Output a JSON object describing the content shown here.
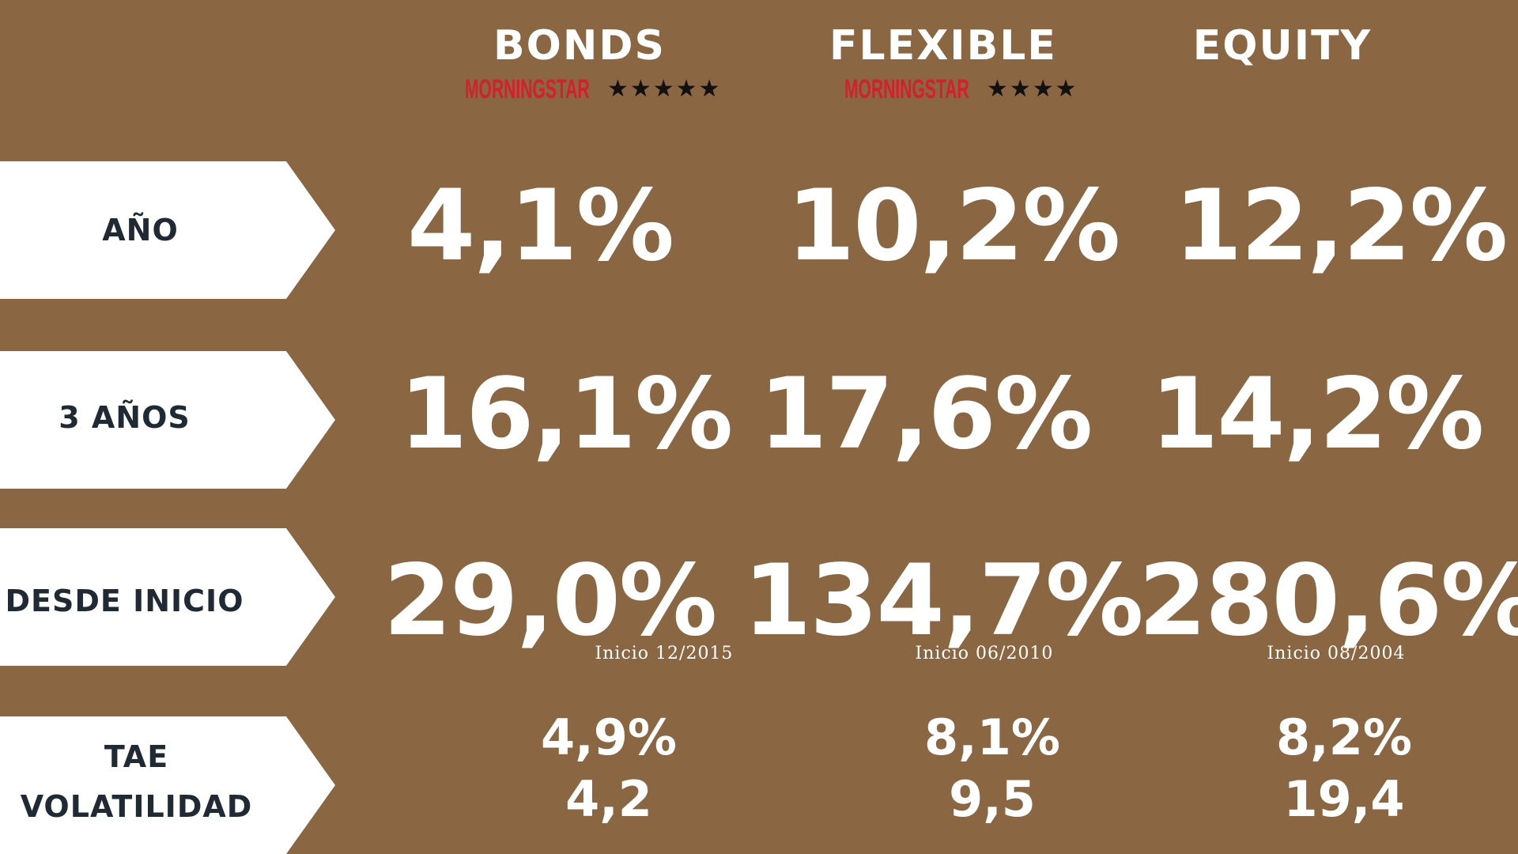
{
  "columns": [
    {
      "title": "BONDS",
      "rating_brand": "MORNINGSTAR",
      "stars": "★★★★★"
    },
    {
      "title": "FLEXIBLE",
      "rating_brand": "MORNINGSTAR",
      "stars": "★★★★"
    },
    {
      "title": "EQUITY"
    }
  ],
  "rows": {
    "year": {
      "label": "AÑO",
      "values": [
        "4,1%",
        "10,2%",
        "12,2%"
      ]
    },
    "three_years": {
      "label": "3 AÑOS",
      "values": [
        "16,1%",
        "17,6%",
        "14,2%"
      ]
    },
    "since_start": {
      "label": "DESDE INICIO",
      "values": [
        "29,0%",
        "134,7%",
        "280,6%"
      ],
      "notes": [
        "Inicio 12/2015",
        "Inicio 06/2010",
        "Inicio 08/2004"
      ]
    },
    "tae_vol": {
      "label_line1": "TAE",
      "label_line2": "VOLATILIDAD",
      "tae": [
        "4,9%",
        "8,1%",
        "8,2%"
      ],
      "volatility": [
        "4,2",
        "9,5",
        "19,4"
      ]
    }
  },
  "colors": {
    "background": "#8a6642",
    "tab": "#ffffff",
    "tab_text": "#1f2a35",
    "morningstar": "#d71f2b"
  }
}
